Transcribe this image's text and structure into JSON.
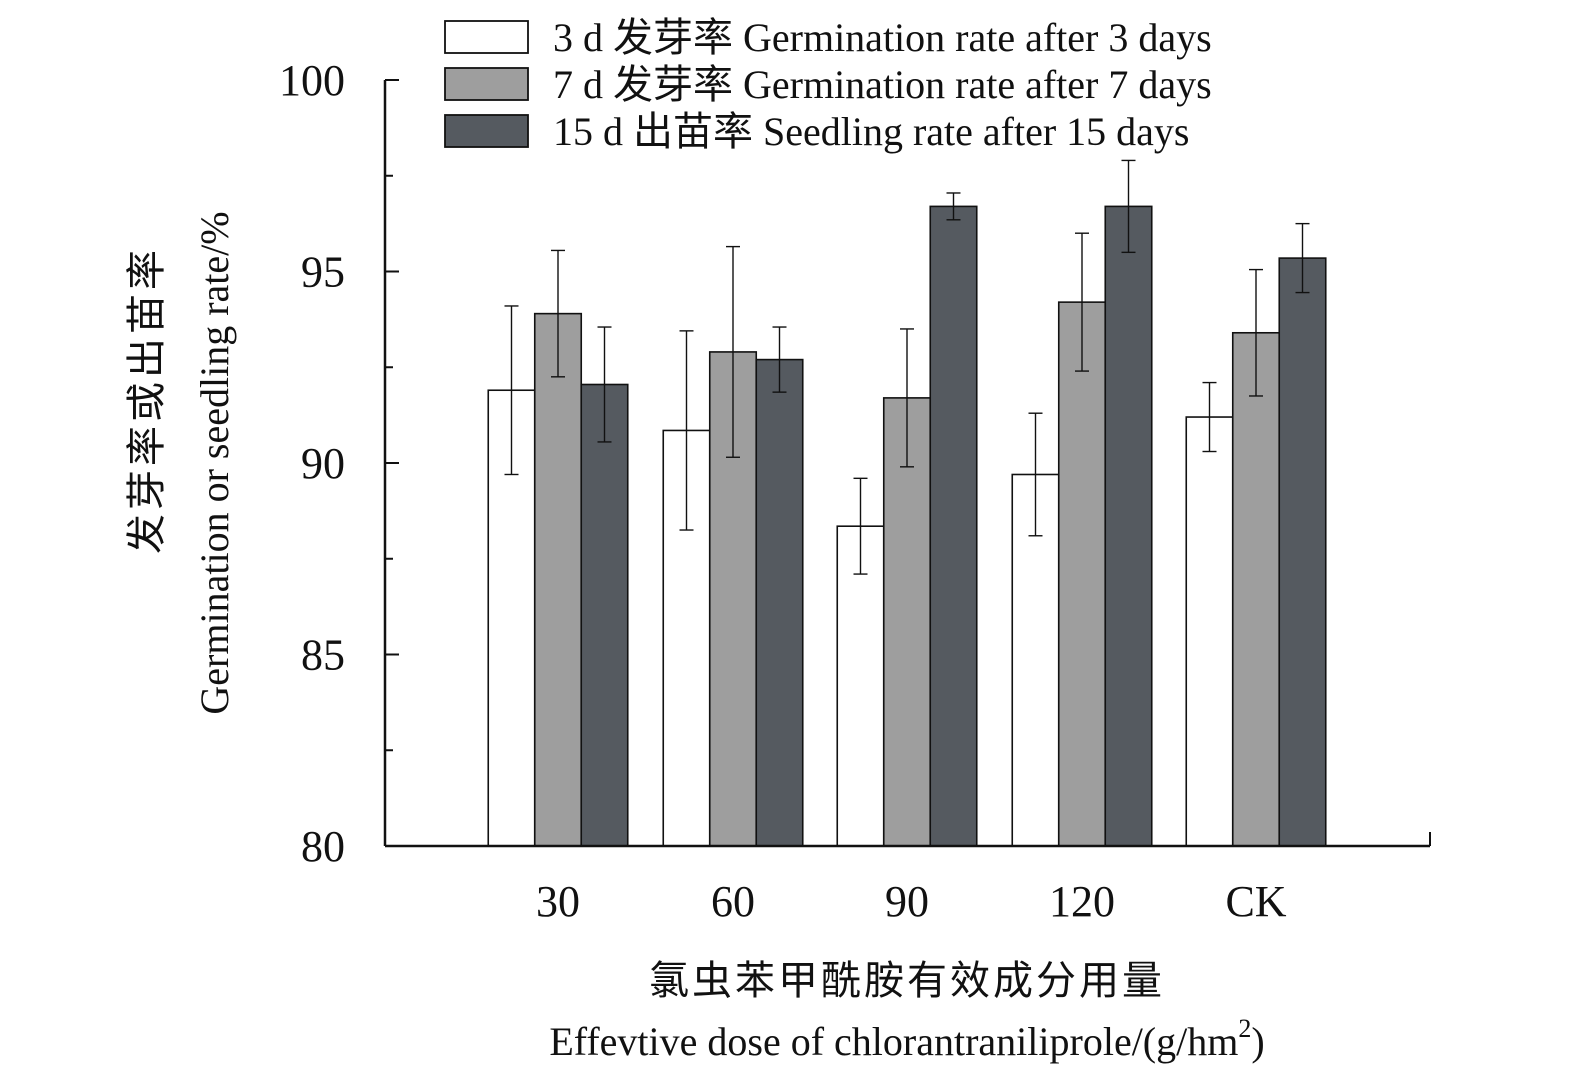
{
  "chart_data": {
    "type": "bar",
    "categories": [
      "30",
      "60",
      "90",
      "120",
      "CK"
    ],
    "series": [
      {
        "name": "3 d 发芽率 Germination rate after 3 days",
        "values": [
          91.9,
          90.85,
          88.35,
          89.7,
          91.2
        ],
        "errors": [
          2.2,
          2.6,
          1.25,
          1.6,
          0.9
        ],
        "color": "#ffffff"
      },
      {
        "name": "7 d 发芽率 Germination rate after 7 days",
        "values": [
          93.9,
          92.9,
          91.7,
          94.2,
          93.4
        ],
        "errors": [
          1.65,
          2.75,
          1.8,
          1.8,
          1.65
        ],
        "color": "#9e9e9e"
      },
      {
        "name": "15 d 出苗率 Seedling rate after 15 days",
        "values": [
          92.05,
          92.7,
          96.7,
          96.7,
          95.35
        ],
        "errors": [
          1.5,
          0.85,
          0.35,
          1.2,
          0.9
        ],
        "color": "#555a60"
      }
    ],
    "ylim": [
      80,
      100
    ],
    "yticks_major": [
      80,
      85,
      90,
      95,
      100
    ],
    "ytick_labels": [
      "80",
      "85",
      "90",
      "95",
      "100"
    ],
    "ylabel_cn": "发芽率或出苗率",
    "ylabel_en": "Germination or seedling rate/%",
    "xlabel_cn": "氯虫苯甲酰胺有效成分用量",
    "xlabel_en": "Effevtive dose of chlorantraniliprole/(g/hm",
    "xlabel_en_sup": "2",
    "xlabel_en_tail": ")",
    "legend_position": "top",
    "grid": false
  }
}
